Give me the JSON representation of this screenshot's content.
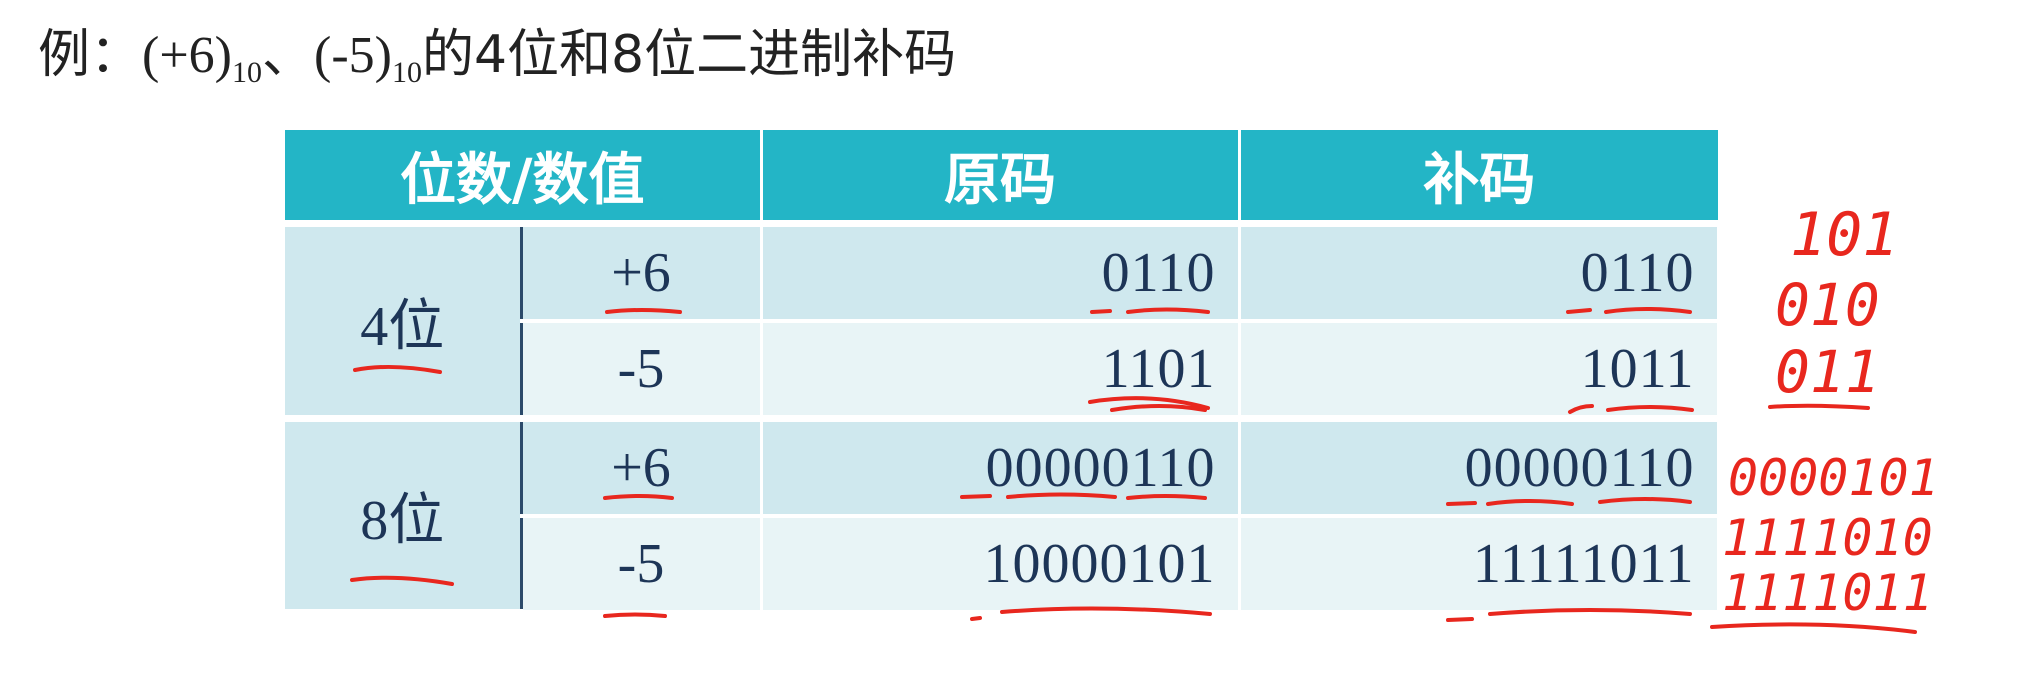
{
  "title": {
    "prefix": "例：",
    "v1": "(+6)",
    "sub1": "10",
    "sep": "、",
    "v2": "(-5)",
    "sub2": "10",
    "suffix": "的4位和8位二进制补码"
  },
  "table": {
    "headers": [
      "位数/数值",
      "原码",
      "补码"
    ],
    "groups": [
      {
        "label": "4位",
        "rows": [
          {
            "value": "+6",
            "original": "0110",
            "complement": "0110"
          },
          {
            "value": "-5",
            "original": "1101",
            "complement": "1011"
          }
        ]
      },
      {
        "label": "8位",
        "rows": [
          {
            "value": "+6",
            "original": "00000110",
            "complement": "00000110"
          },
          {
            "value": "-5",
            "original": "10000101",
            "complement": "11111011"
          }
        ]
      }
    ]
  },
  "handwritten_notes": [
    "101",
    "010",
    "011",
    "0000101",
    "1111010",
    "1111011"
  ],
  "colors": {
    "header_bg": "#23b5c6",
    "row_dark": "#cfe8ee",
    "row_light": "#e8f4f6",
    "text": "#1d3557",
    "ink": "#e8271e"
  }
}
